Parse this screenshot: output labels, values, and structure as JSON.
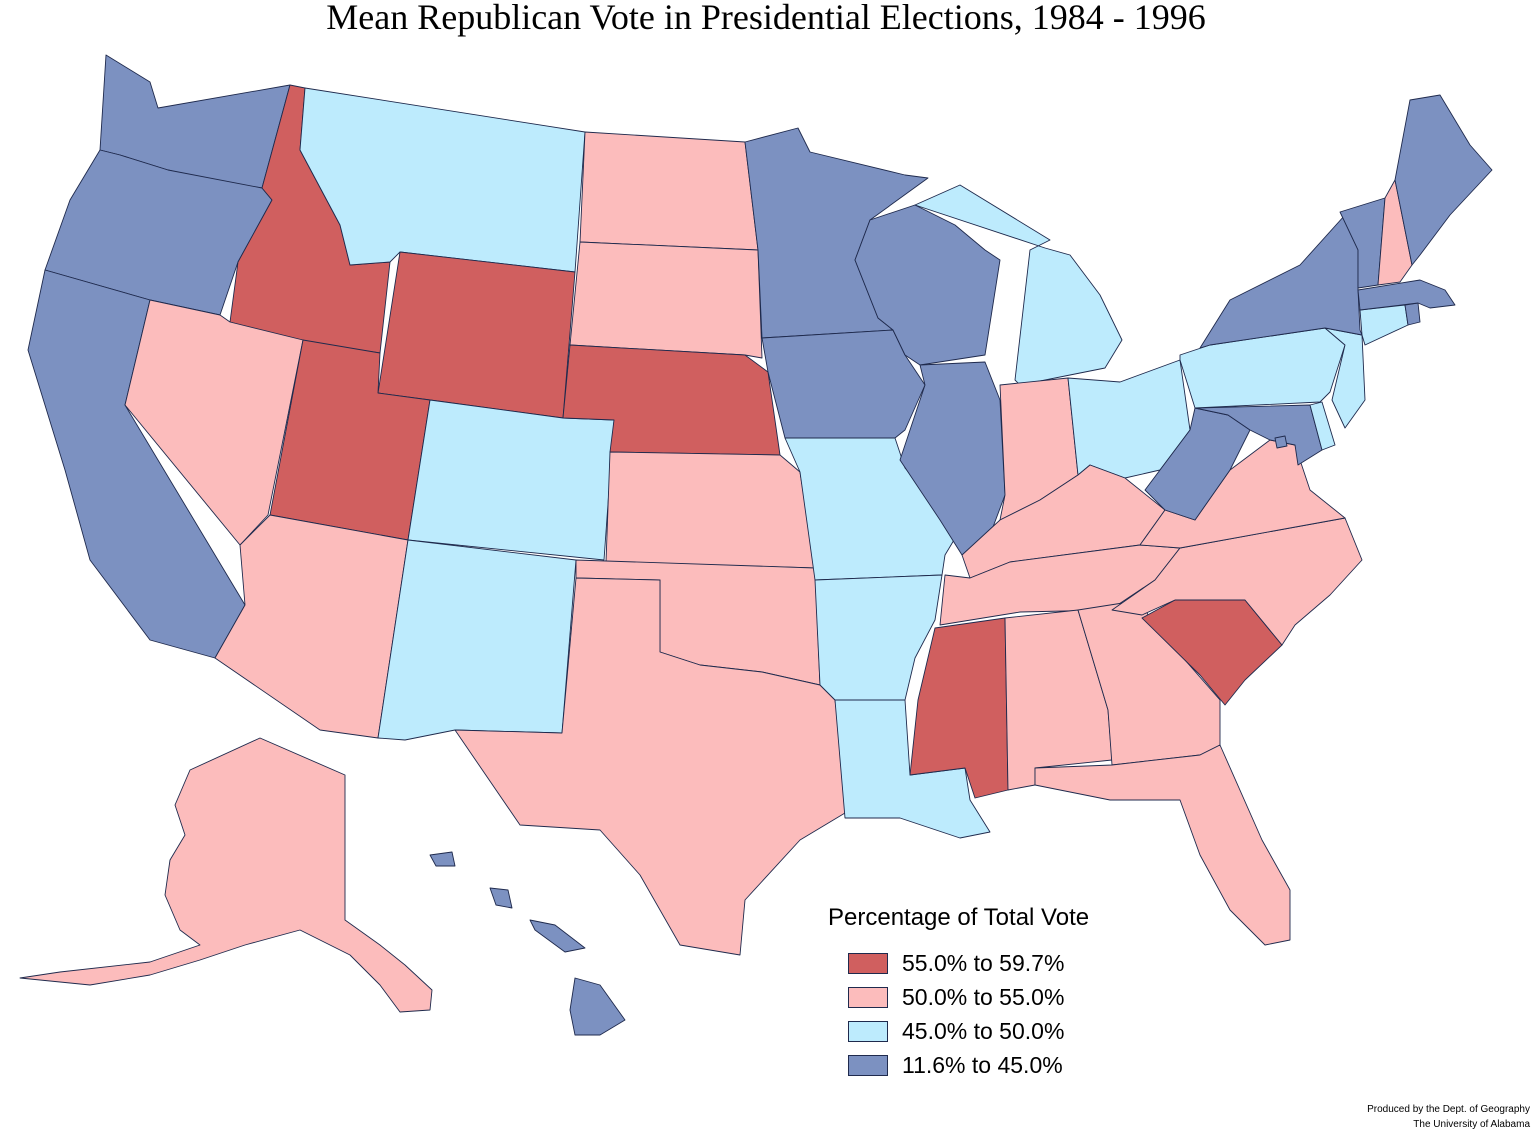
{
  "title": "Mean Republican Vote in Presidential Elections, 1984 - 1996",
  "legend": {
    "title": "Percentage of Total Vote",
    "classes": [
      {
        "label": "55.0% to 59.7%",
        "color": "#d05f5f"
      },
      {
        "label": "50.0% to 55.0%",
        "color": "#fcbcbc"
      },
      {
        "label": "45.0% to 50.0%",
        "color": "#bdebfd"
      },
      {
        "label": "11.6% to 45.0%",
        "color": "#7c91c1"
      }
    ]
  },
  "credit": {
    "line1": "Produced by the Dept. of Geography",
    "line2": "The University of Alabama"
  },
  "states": {
    "WA": 3,
    "OR": 3,
    "CA": 3,
    "ID": 0,
    "NV": 1,
    "MT": 2,
    "WY": 0,
    "UT": 0,
    "AZ": 1,
    "CO": 2,
    "NM": 2,
    "ND": 1,
    "SD": 1,
    "NE": 0,
    "KS": 1,
    "OK": 1,
    "TX": 1,
    "MN": 3,
    "IA": 3,
    "MO": 2,
    "AR": 2,
    "LA": 2,
    "WI": 3,
    "IL": 3,
    "MI": 2,
    "IN": 1,
    "OH": 2,
    "KY": 1,
    "TN": 1,
    "MS": 0,
    "AL": 1,
    "GA": 1,
    "FL": 1,
    "SC": 0,
    "NC": 1,
    "VA": 1,
    "WV": 3,
    "PA": 2,
    "NY": 3,
    "VT": 3,
    "NH": 1,
    "ME": 3,
    "MA": 3,
    "RI": 3,
    "CT": 2,
    "NJ": 2,
    "DE": 2,
    "MD": 3,
    "DC": 3,
    "AK": 1,
    "HI": 3
  }
}
